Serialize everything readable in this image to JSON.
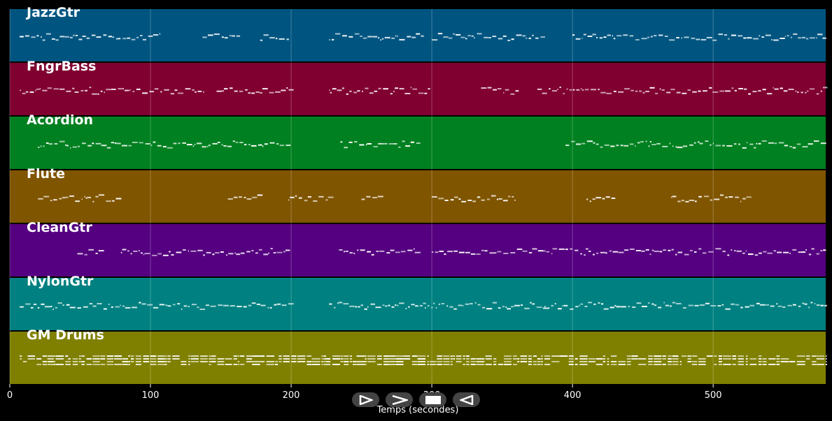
{
  "chart_data": {
    "type": "piano-roll",
    "xlabel": "Temps (secondes)",
    "xlim": [
      0,
      580
    ],
    "xticks": [
      0,
      100,
      200,
      300,
      400,
      500
    ],
    "grid": true,
    "tracks": [
      {
        "name": "JazzGtr",
        "color": "#005580",
        "segments": [
          [
            7,
            107
          ],
          [
            137,
            164
          ],
          [
            178,
            199
          ],
          [
            227,
            295
          ],
          [
            300,
            378
          ],
          [
            400,
            580
          ]
        ]
      },
      {
        "name": "FngrBass",
        "color": "#800030",
        "segments": [
          [
            7,
            138
          ],
          [
            147,
            199
          ],
          [
            227,
            298
          ],
          [
            335,
            362
          ],
          [
            375,
            580
          ]
        ]
      },
      {
        "name": "Acordion",
        "color": "#008020",
        "segments": [
          [
            20,
            199
          ],
          [
            235,
            290
          ],
          [
            395,
            580
          ]
        ]
      },
      {
        "name": "Flute",
        "color": "#805500",
        "segments": [
          [
            20,
            80
          ],
          [
            155,
            180
          ],
          [
            198,
            228
          ],
          [
            250,
            266
          ],
          [
            300,
            360
          ],
          [
            410,
            430
          ],
          [
            470,
            525
          ]
        ]
      },
      {
        "name": "CleanGtr",
        "color": "#550080",
        "segments": [
          [
            48,
            66
          ],
          [
            79,
            199
          ],
          [
            234,
            290
          ],
          [
            300,
            580
          ]
        ]
      },
      {
        "name": "NylonGtr",
        "color": "#008080",
        "segments": [
          [
            7,
            199
          ],
          [
            227,
            295
          ],
          [
            295,
            380
          ],
          [
            380,
            580
          ]
        ]
      },
      {
        "name": "GM Drums",
        "color": "#808000",
        "segments": [
          [
            7,
            580
          ]
        ]
      }
    ]
  }
}
